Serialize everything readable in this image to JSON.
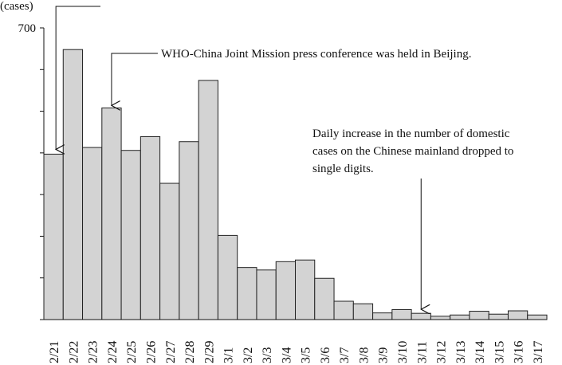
{
  "chart_data": {
    "type": "bar",
    "ylabel": "(cases)",
    "yticks": [
      0,
      100,
      200,
      300,
      400,
      500,
      600,
      700
    ],
    "ytick_labels": [
      {
        "value": 700,
        "label": "700"
      }
    ],
    "ylim": [
      0,
      700
    ],
    "grid": false,
    "bar_color": "#d3d3d3",
    "bar_edge": "#222222",
    "categories": [
      "2/21",
      "2/22",
      "2/23",
      "2/24",
      "2/25",
      "2/26",
      "2/27",
      "2/28",
      "2/29",
      "3/1",
      "3/2",
      "3/3",
      "3/4",
      "3/5",
      "3/6",
      "3/7",
      "3/8",
      "3/9",
      "3/10",
      "3/11",
      "3/12",
      "3/13",
      "3/14",
      "3/15",
      "3/16",
      "3/17"
    ],
    "values": [
      397,
      648,
      413,
      508,
      406,
      439,
      327,
      427,
      574,
      202,
      125,
      119,
      139,
      143,
      99,
      44,
      38,
      16,
      24,
      15,
      8,
      11,
      20,
      13,
      21,
      11
    ],
    "annotations": [
      {
        "text": "WHO-China Joint Mission press conference was held in Beijing.",
        "target": "2/24"
      },
      {
        "text": "Daily increase in the number of domestic cases on the Chinese mainland dropped to single digits.",
        "lines": [
          "Daily increase in the number of domestic",
          "cases on the Chinese mainland dropped to",
          "single digits."
        ],
        "target": "3/11"
      },
      {
        "text": "",
        "target": "2/21"
      }
    ]
  }
}
